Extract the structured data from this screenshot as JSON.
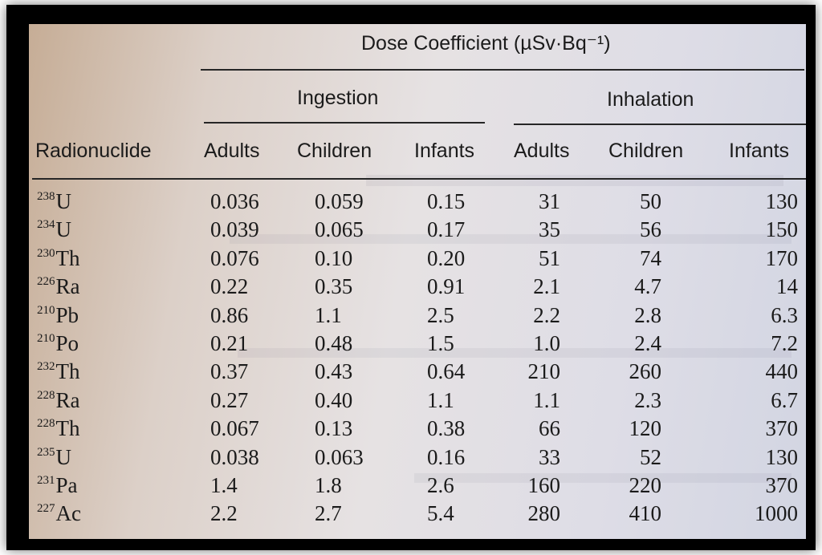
{
  "table": {
    "title": "Dose Coefficient (µSv·Bq⁻¹)",
    "group_ingestion": "Ingestion",
    "group_inhalation": "Inhalation",
    "columns": [
      "Radionuclide",
      "Adults",
      "Children",
      "Infants",
      "Adults",
      "Children",
      "Infants"
    ],
    "rows": [
      {
        "mass": "238",
        "element": "U",
        "values": [
          "0.036",
          "0.059",
          "0.15",
          "31",
          "50",
          "130"
        ]
      },
      {
        "mass": "234",
        "element": "U",
        "values": [
          "0.039",
          "0.065",
          "0.17",
          "35",
          "56",
          "150"
        ]
      },
      {
        "mass": "230",
        "element": "Th",
        "values": [
          "0.076",
          "0.10",
          "0.20",
          "51",
          "74",
          "170"
        ]
      },
      {
        "mass": "226",
        "element": "Ra",
        "values": [
          "0.22",
          "0.35",
          "0.91",
          "2.1",
          "4.7",
          "14"
        ]
      },
      {
        "mass": "210",
        "element": "Pb",
        "values": [
          "0.86",
          "1.1",
          "2.5",
          "2.2",
          "2.8",
          "6.3"
        ]
      },
      {
        "mass": "210",
        "element": "Po",
        "values": [
          "0.21",
          "0.48",
          "1.5",
          "1.0",
          "2.4",
          "7.2"
        ]
      },
      {
        "mass": "232",
        "element": "Th",
        "values": [
          "0.37",
          "0.43",
          "0.64",
          "210",
          "260",
          "440"
        ]
      },
      {
        "mass": "228",
        "element": "Ra",
        "values": [
          "0.27",
          "0.40",
          "1.1",
          "1.1",
          "2.3",
          "6.7"
        ]
      },
      {
        "mass": "228",
        "element": "Th",
        "values": [
          "0.067",
          "0.13",
          "0.38",
          "66",
          "120",
          "370"
        ]
      },
      {
        "mass": "235",
        "element": "U",
        "values": [
          "0.038",
          "0.063",
          "0.16",
          "33",
          "52",
          "130"
        ]
      },
      {
        "mass": "231",
        "element": "Pa",
        "values": [
          "1.4",
          "1.8",
          "2.6",
          "160",
          "220",
          "370"
        ]
      },
      {
        "mass": "227",
        "element": "Ac",
        "values": [
          "2.2",
          "2.7",
          "5.4",
          "280",
          "410",
          "1000"
        ]
      }
    ]
  }
}
